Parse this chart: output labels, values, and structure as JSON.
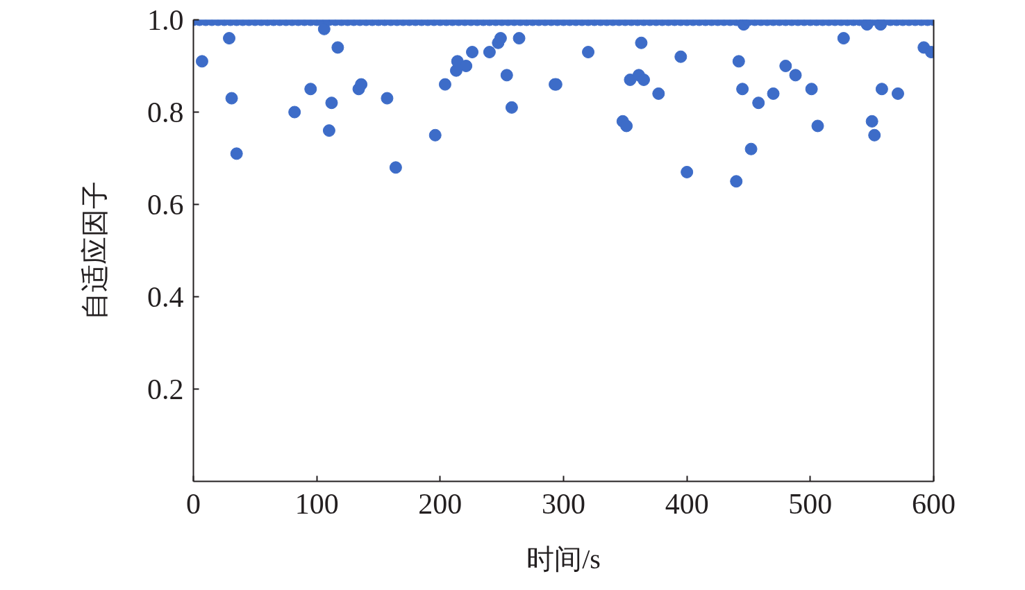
{
  "chart_data": {
    "type": "scatter",
    "xlabel": "时间/s",
    "ylabel": "自适应因子",
    "xlim": [
      0,
      600
    ],
    "ylim": [
      0,
      1
    ],
    "xticks": [
      0,
      100,
      200,
      300,
      400,
      500,
      600
    ],
    "yticks": [
      0.2,
      0.4,
      0.6,
      0.8,
      {
        "value": 1,
        "label": "1.0"
      }
    ],
    "grid": false,
    "marker": "circle",
    "series": [
      {
        "color": "#3d6cc8",
        "x": [
          0,
          5,
          7,
          10,
          15,
          20,
          25,
          29,
          30,
          31,
          35,
          35,
          40,
          45,
          50,
          55,
          60,
          65,
          70,
          75,
          80,
          82,
          85,
          90,
          95,
          95,
          100,
          105,
          106,
          110,
          110,
          112,
          115,
          117,
          120,
          125,
          130,
          134,
          135,
          136,
          140,
          145,
          150,
          155,
          157,
          160,
          164,
          165,
          170,
          175,
          180,
          185,
          190,
          195,
          196,
          200,
          204,
          205,
          210,
          213,
          214,
          215,
          220,
          221,
          225,
          226,
          230,
          235,
          240,
          240,
          245,
          247,
          249,
          250,
          254,
          255,
          258,
          260,
          264,
          265,
          270,
          275,
          280,
          285,
          290,
          293,
          294,
          295,
          300,
          305,
          310,
          315,
          320,
          320,
          325,
          330,
          335,
          340,
          345,
          348,
          350,
          351,
          354,
          355,
          360,
          361,
          363,
          365,
          365,
          370,
          375,
          377,
          380,
          385,
          390,
          395,
          395,
          400,
          400,
          405,
          410,
          415,
          420,
          425,
          430,
          435,
          440,
          440,
          442,
          445,
          445,
          446,
          450,
          452,
          455,
          458,
          460,
          465,
          470,
          470,
          475,
          480,
          480,
          485,
          488,
          490,
          495,
          500,
          501,
          505,
          506,
          510,
          515,
          520,
          525,
          527,
          530,
          535,
          540,
          545,
          546,
          550,
          550,
          552,
          555,
          557,
          558,
          560,
          565,
          570,
          571,
          575,
          580,
          585,
          590,
          592,
          595,
          598,
          600
        ],
        "values": [
          1,
          1,
          0.91,
          1,
          1,
          1,
          1,
          0.96,
          1,
          0.83,
          1,
          0.71,
          1,
          1,
          1,
          1,
          1,
          1,
          1,
          1,
          1,
          0.8,
          1,
          1,
          1,
          0.85,
          1,
          1,
          0.98,
          1,
          0.76,
          0.82,
          1,
          0.94,
          1,
          1,
          1,
          0.85,
          1,
          0.86,
          1,
          1,
          1,
          1,
          0.83,
          1,
          0.68,
          1,
          1,
          1,
          1,
          1,
          1,
          1,
          0.75,
          1,
          0.86,
          1,
          1,
          0.89,
          0.91,
          1,
          1,
          0.9,
          1,
          0.93,
          1,
          1,
          1,
          0.93,
          1,
          0.95,
          0.96,
          1,
          0.88,
          1,
          0.81,
          1,
          0.96,
          1,
          1,
          1,
          1,
          1,
          1,
          0.86,
          0.86,
          1,
          1,
          1,
          1,
          1,
          1,
          0.93,
          1,
          1,
          1,
          1,
          1,
          0.78,
          1,
          0.77,
          0.87,
          1,
          1,
          0.88,
          0.95,
          1,
          0.87,
          1,
          1,
          0.84,
          1,
          1,
          1,
          1,
          0.92,
          1,
          0.67,
          1,
          1,
          1,
          1,
          1,
          1,
          1,
          1,
          0.65,
          0.91,
          1,
          0.85,
          0.99,
          1,
          0.72,
          1,
          0.82,
          1,
          1,
          1,
          0.84,
          1,
          1,
          0.9,
          1,
          0.88,
          1,
          1,
          1,
          0.85,
          1,
          0.77,
          1,
          1,
          1,
          1,
          0.96,
          1,
          1,
          1,
          1,
          0.99,
          1,
          0.78,
          0.75,
          1,
          0.99,
          0.85,
          1,
          1,
          1,
          0.84,
          1,
          1,
          1,
          1,
          0.94,
          1,
          0.93,
          1
        ]
      }
    ]
  }
}
